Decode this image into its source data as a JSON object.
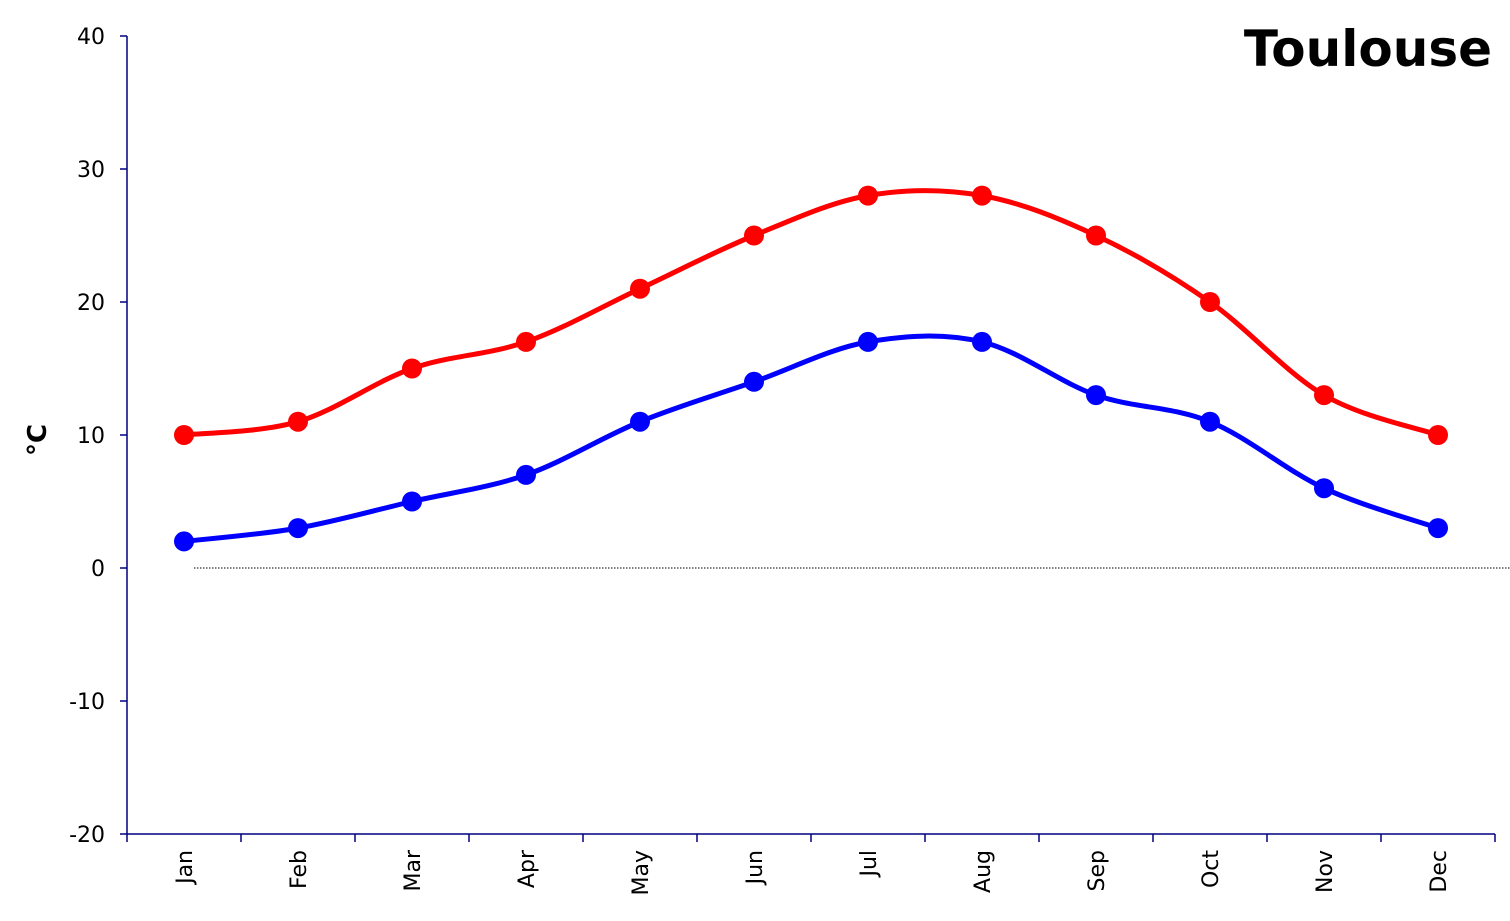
{
  "chart_data": {
    "type": "line",
    "title": "Toulouse",
    "xlabel": "",
    "ylabel": "°C",
    "categories": [
      "Jan",
      "Feb",
      "Mar",
      "Apr",
      "May",
      "Jun",
      "Jul",
      "Aug",
      "Sep",
      "Oct",
      "Nov",
      "Dec"
    ],
    "ylim": [
      -20,
      40
    ],
    "yticks": [
      -20,
      -10,
      0,
      10,
      20,
      30,
      40
    ],
    "ytick_labels": [
      "-20",
      "-10",
      "0",
      "10",
      "20",
      "30",
      "40"
    ],
    "grid": false,
    "zero_line": "dotted",
    "legend": "none",
    "smooth": true,
    "markers": "circle",
    "series": [
      {
        "values": [
          10,
          11,
          15,
          17,
          21,
          25,
          28,
          28,
          25,
          20,
          13,
          10
        ],
        "color": "#ff0000"
      },
      {
        "values": [
          2,
          3,
          5,
          7,
          11,
          14,
          17,
          17,
          13,
          11,
          6,
          3
        ],
        "color": "#0000ff"
      }
    ],
    "colors": {
      "axis": "#000080",
      "text": "#000000",
      "background": "#ffffff"
    }
  }
}
